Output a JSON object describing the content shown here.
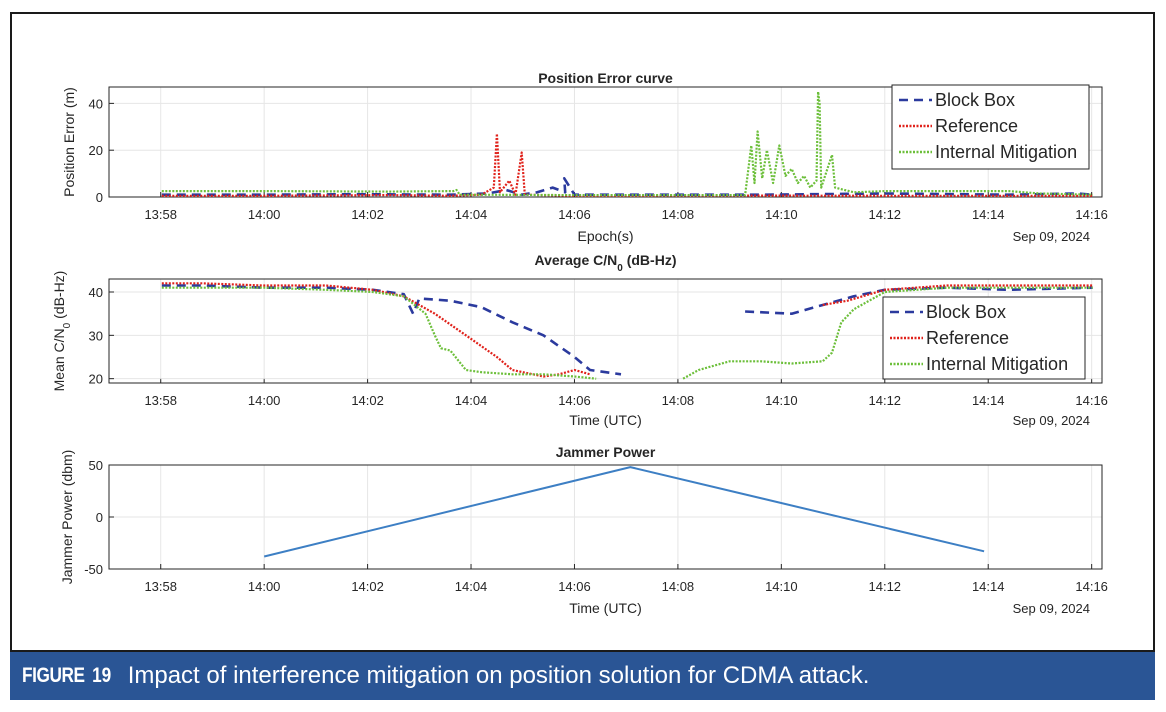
{
  "caption": {
    "label": "FIGURE",
    "number": "19",
    "text": "Impact of interference mitigation on position solution for CDMA attack."
  },
  "colors": {
    "block_box": "#2b3a9e",
    "reference": "#e0221b",
    "internal_mitigation": "#6cbf3a",
    "jammer": "#3d7fc4",
    "caption_bg": "#2a5595"
  },
  "chart_data": [
    {
      "type": "line",
      "title": "Position Error curve",
      "xlabel": "Epoch(s)",
      "ylabel": "Position Error (m)",
      "date_label": "Sep 09, 2024",
      "xlim": [
        13.95,
        14.27
      ],
      "ylim": [
        0,
        47
      ],
      "xticks": [
        "13:58",
        "14:00",
        "14:02",
        "14:04",
        "14:06",
        "14:08",
        "14:10",
        "14:12",
        "14:14",
        "14:16"
      ],
      "yticks": [
        0,
        20,
        40
      ],
      "legend": {
        "placement": "top-right",
        "entries": [
          "Block Box",
          "Reference",
          "Internal Mitigation"
        ]
      },
      "series": [
        {
          "name": "Block Box",
          "style": "dashed",
          "points": [
            [
              13.967,
              1
            ],
            [
              14.0,
              1
            ],
            [
              14.03,
              1.2
            ],
            [
              14.06,
              1
            ],
            [
              14.072,
              1.5
            ],
            [
              14.078,
              3
            ],
            [
              14.083,
              1
            ],
            [
              14.088,
              2
            ],
            [
              14.093,
              4
            ],
            [
              14.097,
              2
            ],
            [
              14.0967,
              8
            ],
            [
              14.1,
              1
            ],
            [
              14.16,
              1
            ],
            [
              14.2,
              1.5
            ],
            [
              14.24,
              1
            ],
            [
              14.262,
              1.5
            ],
            [
              14.267,
              1
            ]
          ]
        },
        {
          "name": "Reference",
          "style": "dotted",
          "points": [
            [
              13.967,
              0.5
            ],
            [
              14.0,
              0.5
            ],
            [
              14.04,
              0.8
            ],
            [
              14.06,
              0.5
            ],
            [
              14.07,
              1
            ],
            [
              14.074,
              4
            ],
            [
              14.075,
              27
            ],
            [
              14.076,
              2
            ],
            [
              14.079,
              7
            ],
            [
              14.081,
              1
            ],
            [
              14.083,
              19
            ],
            [
              14.084,
              1
            ],
            [
              14.1,
              0.5
            ],
            [
              14.16,
              0.6
            ],
            [
              14.2,
              0.5
            ],
            [
              14.267,
              0.5
            ]
          ]
        },
        {
          "name": "Internal Mitigation",
          "style": "dotted",
          "points": [
            [
              13.967,
              2.5
            ],
            [
              14.0,
              2.5
            ],
            [
              14.04,
              2.3
            ],
            [
              14.061,
              2.5
            ],
            [
              14.062,
              3
            ],
            [
              14.063,
              1
            ],
            [
              14.1,
              0.8
            ],
            [
              14.155,
              0.8
            ],
            [
              14.157,
              22
            ],
            [
              14.158,
              6
            ],
            [
              14.159,
              28
            ],
            [
              14.1605,
              8
            ],
            [
              14.162,
              20
            ],
            [
              14.164,
              6
            ],
            [
              14.166,
              22
            ],
            [
              14.168,
              9
            ],
            [
              14.17,
              12
            ],
            [
              14.172,
              6
            ],
            [
              14.174,
              9
            ],
            [
              14.176,
              4
            ],
            [
              14.178,
              7
            ],
            [
              14.1785,
              45
            ],
            [
              14.179,
              40
            ],
            [
              14.1795,
              4
            ],
            [
              14.183,
              18
            ],
            [
              14.184,
              4
            ],
            [
              14.19,
              2
            ],
            [
              14.2,
              2.5
            ],
            [
              14.24,
              2.5
            ],
            [
              14.25,
              1.5
            ],
            [
              14.267,
              1
            ]
          ]
        }
      ]
    },
    {
      "type": "line",
      "title": "Average C/N",
      "title_sub": "0",
      "title_suffix": " (dB-Hz)",
      "xlabel": "Time (UTC)",
      "ylabel": "Mean C/N",
      "ylabel_sub": "0",
      "ylabel_suffix": " (dB-Hz)",
      "date_label": "Sep 09, 2024",
      "xlim": [
        13.95,
        14.27
      ],
      "ylim": [
        19,
        43
      ],
      "xticks": [
        "13:58",
        "14:00",
        "14:02",
        "14:04",
        "14:06",
        "14:08",
        "14:10",
        "14:12",
        "14:14",
        "14:16"
      ],
      "yticks": [
        20,
        30,
        40
      ],
      "legend": {
        "placement": "right",
        "entries": [
          "Block Box",
          "Reference",
          "Internal Mitigation"
        ]
      },
      "series": [
        {
          "name": "Block Box",
          "style": "dashed",
          "segments": [
            [
              [
                13.967,
                41.5
              ],
              [
                13.98,
                41.5
              ],
              [
                14.0,
                41
              ],
              [
                14.02,
                41
              ],
              [
                14.035,
                40.5
              ],
              [
                14.045,
                39.5
              ],
              [
                14.048,
                35
              ],
              [
                14.05,
                38.5
              ],
              [
                14.06,
                38
              ],
              [
                14.07,
                36.5
              ],
              [
                14.08,
                33
              ],
              [
                14.09,
                30
              ],
              [
                14.1,
                25
              ],
              [
                14.105,
                22
              ],
              [
                14.115,
                21
              ]
            ],
            [
              [
                14.155,
                35.5
              ],
              [
                14.17,
                35
              ],
              [
                14.18,
                37
              ],
              [
                14.19,
                39
              ],
              [
                14.2,
                40.5
              ],
              [
                14.22,
                41
              ],
              [
                14.24,
                40.5
              ],
              [
                14.267,
                41
              ]
            ]
          ]
        },
        {
          "name": "Reference",
          "style": "dotted",
          "segments": [
            [
              [
                13.967,
                42
              ],
              [
                13.98,
                42
              ],
              [
                14.0,
                41.5
              ],
              [
                14.02,
                41.5
              ],
              [
                14.035,
                40.5
              ],
              [
                14.045,
                39
              ],
              [
                14.055,
                35
              ],
              [
                14.065,
                30
              ],
              [
                14.075,
                25
              ],
              [
                14.08,
                22
              ],
              [
                14.09,
                20.5
              ],
              [
                14.095,
                21
              ],
              [
                14.1,
                22
              ],
              [
                14.105,
                21
              ]
            ],
            [
              [
                14.18,
                37
              ],
              [
                14.188,
                38
              ],
              [
                14.2,
                40.5
              ],
              [
                14.22,
                41.5
              ],
              [
                14.24,
                41.5
              ],
              [
                14.267,
                41.5
              ]
            ]
          ]
        },
        {
          "name": "Internal Mitigation",
          "style": "dotted",
          "segments": [
            [
              [
                13.967,
                41
              ],
              [
                13.98,
                41
              ],
              [
                14.0,
                41
              ],
              [
                14.02,
                40.5
              ],
              [
                14.035,
                40
              ],
              [
                14.045,
                39
              ],
              [
                14.052,
                35
              ],
              [
                14.055,
                30
              ],
              [
                14.057,
                27
              ],
              [
                14.06,
                26.5
              ],
              [
                14.065,
                22
              ],
              [
                14.07,
                21.5
              ],
              [
                14.08,
                21
              ],
              [
                14.09,
                21
              ],
              [
                14.1,
                20.5
              ],
              [
                14.107,
                20
              ]
            ],
            [
              [
                14.135,
                20
              ],
              [
                14.14,
                22
              ],
              [
                14.15,
                24
              ],
              [
                14.16,
                24
              ],
              [
                14.17,
                23.5
              ],
              [
                14.18,
                24
              ],
              [
                14.183,
                26
              ],
              [
                14.186,
                33
              ],
              [
                14.19,
                36
              ],
              [
                14.2,
                40
              ],
              [
                14.22,
                41
              ],
              [
                14.24,
                41
              ],
              [
                14.267,
                41
              ]
            ]
          ]
        }
      ]
    },
    {
      "type": "line",
      "title": "Jammer Power",
      "xlabel": "Time (UTC)",
      "ylabel": "Jammer Power (dbm)",
      "date_label": "Sep 09, 2024",
      "xlim": [
        13.95,
        14.27
      ],
      "ylim": [
        -50,
        50
      ],
      "xticks": [
        "13:58",
        "14:00",
        "14:02",
        "14:04",
        "14:06",
        "14:08",
        "14:10",
        "14:12",
        "14:14",
        "14:16"
      ],
      "yticks": [
        -50,
        0,
        50
      ],
      "series": [
        {
          "name": "Jammer Power",
          "style": "solid",
          "points": [
            [
              14.0,
              -38
            ],
            [
              14.118,
              48
            ],
            [
              14.232,
              -33
            ]
          ]
        }
      ]
    }
  ]
}
